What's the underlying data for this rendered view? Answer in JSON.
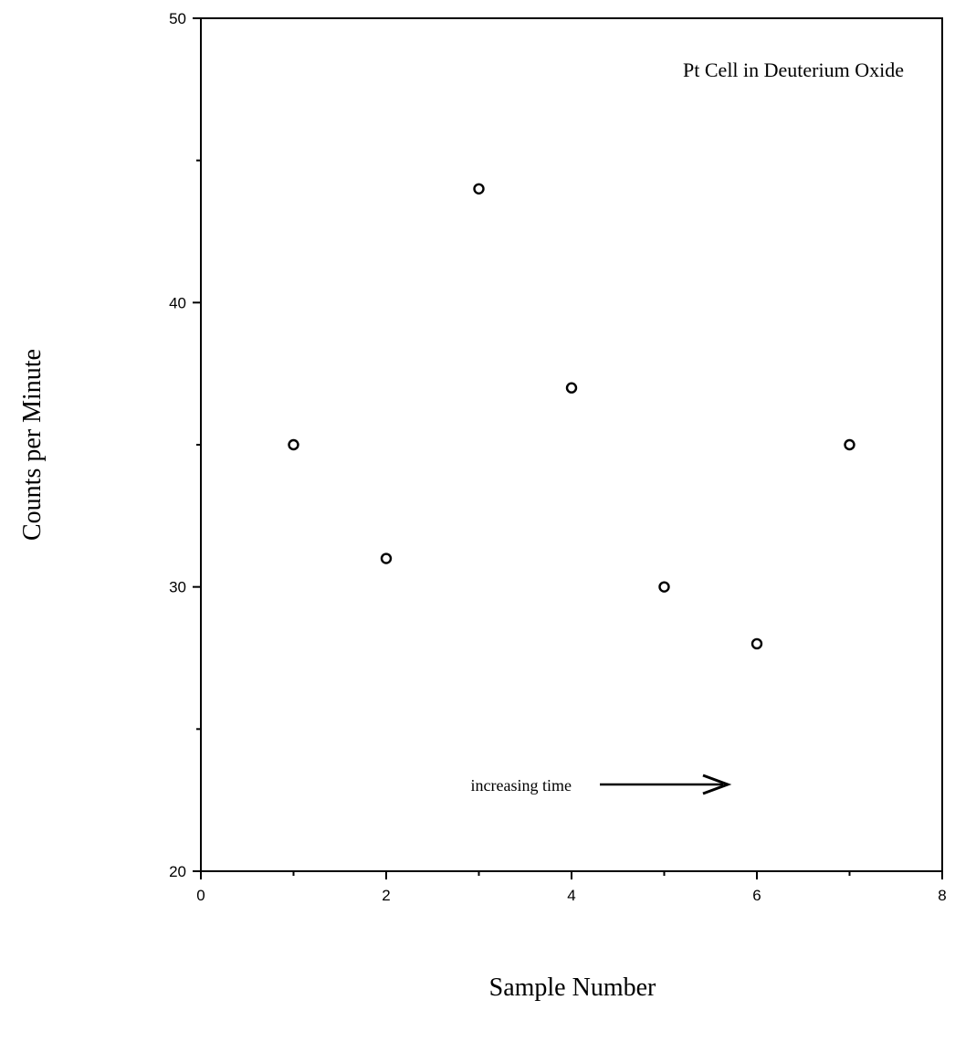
{
  "chart_data": {
    "type": "scatter",
    "title": "",
    "xlabel": "Sample Number",
    "ylabel": "Counts per Minute",
    "xlim": [
      0,
      8
    ],
    "ylim": [
      20,
      50
    ],
    "x_ticks": [
      0,
      2,
      4,
      6,
      8
    ],
    "y_ticks": [
      20,
      30,
      40,
      50
    ],
    "grid": false,
    "marker": "open-circle",
    "series": [
      {
        "x": [
          1,
          2,
          3,
          4,
          5,
          6,
          7
        ],
        "y": [
          35,
          31,
          44,
          37,
          30,
          28,
          35
        ]
      }
    ],
    "annotations": [
      {
        "text": "Pt Cell in Deuterium Oxide"
      },
      {
        "text": "increasing time",
        "arrow": true
      }
    ]
  }
}
